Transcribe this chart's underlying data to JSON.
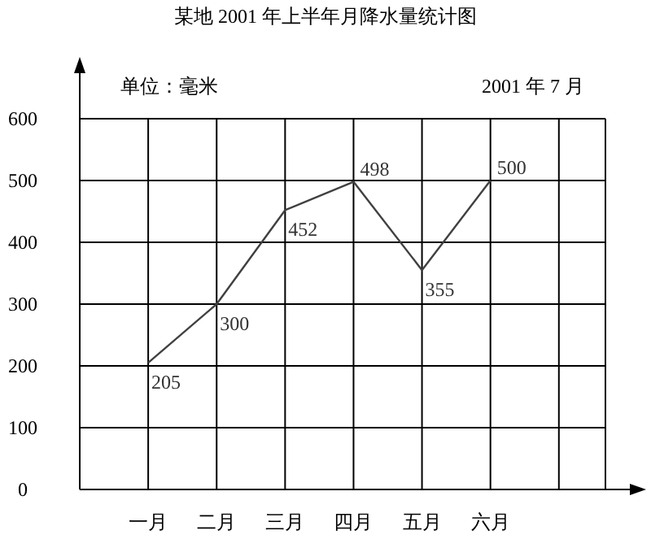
{
  "chart_data": {
    "type": "line",
    "title": "某地 2001 年上半年月降水量统计图",
    "annotations": [
      "单位：毫米",
      "2001 年 7 月"
    ],
    "categories": [
      "一月",
      "二月",
      "三月",
      "四月",
      "五月",
      "六月"
    ],
    "series": [
      {
        "color": "#404040",
        "values": [
          205,
          300,
          452,
          498,
          355,
          500
        ]
      }
    ],
    "ylim": [
      0,
      600
    ],
    "yticks": [
      0,
      100,
      200,
      300,
      400,
      500,
      600
    ],
    "grid": true,
    "data_labels": true,
    "marker": "none",
    "line_style": "solid"
  }
}
